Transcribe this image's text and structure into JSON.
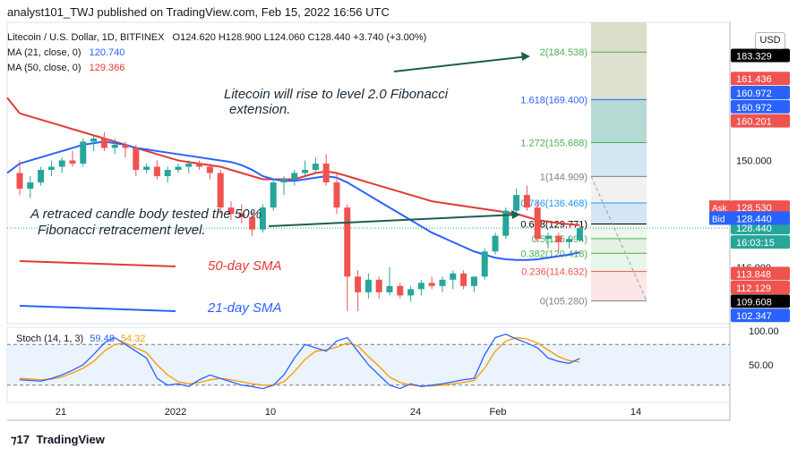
{
  "header": {
    "title": "analyst101_TWJ published on TradingView.com, Feb 15, 2022 16:56 UTC"
  },
  "legend": {
    "symbol": "Litecoin / U.S. Dollar, 1D, BITFINEX",
    "ohlc": "O124.620  H128.900  L124.060  C128.440  +3.740 (+3.00%)",
    "ma21_label": "MA (21, close, 0)",
    "ma21_value": "120.740",
    "ma50_label": "MA (50, close, 0)",
    "ma50_value": "129.366"
  },
  "annotations": {
    "rise": [
      "Litecoin will rise to level 2.0 Fibonacci",
      "extension."
    ],
    "retrace": [
      "A retraced candle body tested the 50%",
      "Fibonacci retracement level."
    ],
    "sma50": "50-day SMA",
    "sma21": "21-day SMA"
  },
  "stoch": {
    "label": "Stoch (14, 1, 3)",
    "k": "59.48",
    "d": "54.32",
    "ticks": [
      "100.00",
      "50.00"
    ]
  },
  "usd_label": "USD",
  "brand": "TradingView",
  "colors": {
    "up": "#26a69a",
    "down": "#ef5350",
    "ma21": "#2962ff",
    "ma50": "#e53935",
    "k": "#2962ff",
    "d": "#ff9800"
  },
  "chart_data": {
    "type": "candlestick",
    "x_ticks": [
      "21",
      "2022",
      "10",
      "24",
      "Feb",
      "14"
    ],
    "y_ticks": [
      "150.000",
      "116.000"
    ],
    "ylim": [
      98,
      194
    ],
    "candles": [
      {
        "o": 146,
        "h": 150,
        "l": 139,
        "c": 141
      },
      {
        "o": 141,
        "h": 145,
        "l": 138,
        "c": 143
      },
      {
        "o": 143,
        "h": 148,
        "l": 142,
        "c": 147
      },
      {
        "o": 147,
        "h": 150,
        "l": 145,
        "c": 148
      },
      {
        "o": 148,
        "h": 151,
        "l": 146,
        "c": 150
      },
      {
        "o": 150,
        "h": 153,
        "l": 148,
        "c": 149
      },
      {
        "o": 149,
        "h": 157,
        "l": 148,
        "c": 156
      },
      {
        "o": 156,
        "h": 158,
        "l": 153,
        "c": 157
      },
      {
        "o": 157,
        "h": 159,
        "l": 153,
        "c": 154
      },
      {
        "o": 154,
        "h": 157,
        "l": 152,
        "c": 155
      },
      {
        "o": 155,
        "h": 156,
        "l": 151,
        "c": 154
      },
      {
        "o": 154,
        "h": 155,
        "l": 145,
        "c": 147
      },
      {
        "o": 147,
        "h": 149,
        "l": 146,
        "c": 148
      },
      {
        "o": 148,
        "h": 150,
        "l": 144,
        "c": 145
      },
      {
        "o": 145,
        "h": 148,
        "l": 143,
        "c": 147
      },
      {
        "o": 147,
        "h": 149,
        "l": 146,
        "c": 148
      },
      {
        "o": 148,
        "h": 150,
        "l": 146,
        "c": 149
      },
      {
        "o": 149,
        "h": 150,
        "l": 147,
        "c": 148
      },
      {
        "o": 148,
        "h": 149,
        "l": 144,
        "c": 146
      },
      {
        "o": 146,
        "h": 147,
        "l": 133,
        "c": 135
      },
      {
        "o": 135,
        "h": 137,
        "l": 131,
        "c": 133
      },
      {
        "o": 133,
        "h": 136,
        "l": 130,
        "c": 132
      },
      {
        "o": 132,
        "h": 134,
        "l": 126,
        "c": 128
      },
      {
        "o": 128,
        "h": 136,
        "l": 127,
        "c": 135
      },
      {
        "o": 135,
        "h": 144,
        "l": 134,
        "c": 143
      },
      {
        "o": 143,
        "h": 145,
        "l": 139,
        "c": 144
      },
      {
        "o": 144,
        "h": 147,
        "l": 142,
        "c": 146
      },
      {
        "o": 146,
        "h": 150,
        "l": 145,
        "c": 147
      },
      {
        "o": 147,
        "h": 151,
        "l": 146,
        "c": 149
      },
      {
        "o": 149,
        "h": 152,
        "l": 142,
        "c": 143
      },
      {
        "o": 143,
        "h": 146,
        "l": 133,
        "c": 135
      },
      {
        "o": 135,
        "h": 136,
        "l": 102,
        "c": 113
      },
      {
        "o": 113,
        "h": 115,
        "l": 102,
        "c": 108
      },
      {
        "o": 108,
        "h": 114,
        "l": 106,
        "c": 112
      },
      {
        "o": 112,
        "h": 113,
        "l": 106,
        "c": 108
      },
      {
        "o": 108,
        "h": 116,
        "l": 107,
        "c": 110
      },
      {
        "o": 110,
        "h": 111,
        "l": 106,
        "c": 107
      },
      {
        "o": 107,
        "h": 110,
        "l": 105,
        "c": 109
      },
      {
        "o": 109,
        "h": 112,
        "l": 107,
        "c": 111
      },
      {
        "o": 111,
        "h": 113,
        "l": 109,
        "c": 110
      },
      {
        "o": 110,
        "h": 113,
        "l": 108,
        "c": 112
      },
      {
        "o": 112,
        "h": 115,
        "l": 109,
        "c": 114
      },
      {
        "o": 114,
        "h": 115,
        "l": 109,
        "c": 110
      },
      {
        "o": 110,
        "h": 113,
        "l": 108,
        "c": 113
      },
      {
        "o": 113,
        "h": 122,
        "l": 112,
        "c": 121
      },
      {
        "o": 121,
        "h": 127,
        "l": 120,
        "c": 126
      },
      {
        "o": 126,
        "h": 135,
        "l": 125,
        "c": 134
      },
      {
        "o": 134,
        "h": 141,
        "l": 133,
        "c": 139
      },
      {
        "o": 139,
        "h": 142,
        "l": 134,
        "c": 135
      },
      {
        "o": 135,
        "h": 137,
        "l": 124,
        "c": 125
      },
      {
        "o": 125,
        "h": 127,
        "l": 122,
        "c": 126
      },
      {
        "o": 126,
        "h": 127,
        "l": 121,
        "c": 124
      },
      {
        "o": 124,
        "h": 126,
        "l": 122,
        "c": 125
      },
      {
        "o": 124.62,
        "h": 128.9,
        "l": 124.06,
        "c": 128.44
      }
    ],
    "ma50": [
      165,
      164,
      163,
      162,
      161,
      160,
      159,
      158,
      157,
      156,
      155,
      154,
      153,
      152,
      151,
      150,
      149.5,
      149,
      148.5,
      148,
      147,
      146,
      145,
      144,
      144,
      144,
      144,
      145,
      146,
      146.5,
      146,
      145,
      144,
      143,
      142,
      141,
      140,
      139,
      138,
      137,
      136.5,
      136,
      135.5,
      135,
      134.5,
      134,
      133.5,
      133,
      132,
      131,
      130.5,
      130,
      129.7,
      129.366
    ],
    "ma21": [
      149,
      150,
      151,
      152,
      153,
      154,
      155,
      155.5,
      156,
      155.5,
      155,
      154,
      153.5,
      153,
      152.5,
      152,
      151.5,
      151,
      150.5,
      150,
      149.5,
      148.5,
      147,
      145,
      144,
      143.5,
      143.5,
      144,
      144.5,
      145,
      144.5,
      143,
      141,
      139,
      137,
      135,
      133,
      131,
      129,
      127,
      125.5,
      124,
      122.5,
      121,
      120,
      119,
      118.5,
      118.3,
      118.3,
      118.5,
      119,
      119.5,
      120,
      120.74
    ],
    "fib": [
      {
        "label": "2(184.538)",
        "v": 184.538,
        "color": "#4caf50"
      },
      {
        "label": "1.618(169.400)",
        "v": 169.4,
        "color": "#2962ff"
      },
      {
        "label": "1.272(155.688)",
        "v": 155.688,
        "color": "#4caf50"
      },
      {
        "label": "1(144.909)",
        "v": 144.909,
        "color": "#808080"
      },
      {
        "label": "0.786(136.468)",
        "v": 136.468,
        "color": "#2196f3"
      },
      {
        "label": "0.618(129.771)",
        "v": 129.771,
        "color": "#000000"
      },
      {
        "label": "0.5(125.094)",
        "v": 125.094,
        "color": "#4caf50"
      },
      {
        "label": "0.382(120.418)",
        "v": 120.418,
        "color": "#4caf50"
      },
      {
        "label": "0.236(114.632)",
        "v": 114.632,
        "color": "#ef5350"
      },
      {
        "label": "0(105.280)",
        "v": 105.28,
        "color": "#808080"
      }
    ],
    "price_labels": [
      {
        "text": "183.329",
        "v": 183.329,
        "color": "#000000"
      },
      {
        "text": "161.436",
        "v": 176.0,
        "color": "#ef5350"
      },
      {
        "text": "160.972",
        "v": 171.5,
        "color": "#2962ff"
      },
      {
        "text": "160.972",
        "v": 167.0,
        "color": "#2962ff"
      },
      {
        "text": "160.201",
        "v": 162.5,
        "color": "#ef5350"
      },
      {
        "text": "128.440",
        "v": 128.44,
        "color": "#26a69a"
      },
      {
        "text": "113.848",
        "v": 113.848,
        "color": "#ef5350"
      },
      {
        "text": "112.129",
        "v": 109.4,
        "color": "#ef5350"
      },
      {
        "text": "109.608",
        "v": 105.0,
        "color": "#000000"
      },
      {
        "text": "102.347",
        "v": 100.5,
        "color": "#2962ff"
      }
    ],
    "countdown": "16:03:15",
    "ask": {
      "label": "Ask",
      "value": "128.530"
    },
    "bid": {
      "label": "Bid",
      "value": "128.440"
    },
    "stoch_k": [
      28,
      27,
      26,
      30,
      35,
      42,
      50,
      65,
      82,
      90,
      80,
      70,
      60,
      30,
      20,
      22,
      18,
      28,
      35,
      30,
      25,
      20,
      18,
      15,
      20,
      35,
      60,
      80,
      75,
      70,
      85,
      90,
      70,
      50,
      35,
      20,
      15,
      22,
      18,
      20,
      22,
      25,
      28,
      30,
      65,
      90,
      95,
      88,
      82,
      75,
      60,
      55,
      52,
      59.48
    ],
    "stoch_d": [
      30,
      29,
      28,
      29,
      32,
      38,
      45,
      55,
      70,
      80,
      82,
      75,
      68,
      50,
      35,
      25,
      22,
      24,
      28,
      30,
      28,
      25,
      22,
      20,
      20,
      25,
      40,
      58,
      70,
      72,
      76,
      82,
      78,
      62,
      48,
      32,
      24,
      20,
      19,
      19,
      20,
      22,
      24,
      27,
      45,
      70,
      85,
      90,
      88,
      82,
      72,
      62,
      56,
      54.32
    ]
  }
}
